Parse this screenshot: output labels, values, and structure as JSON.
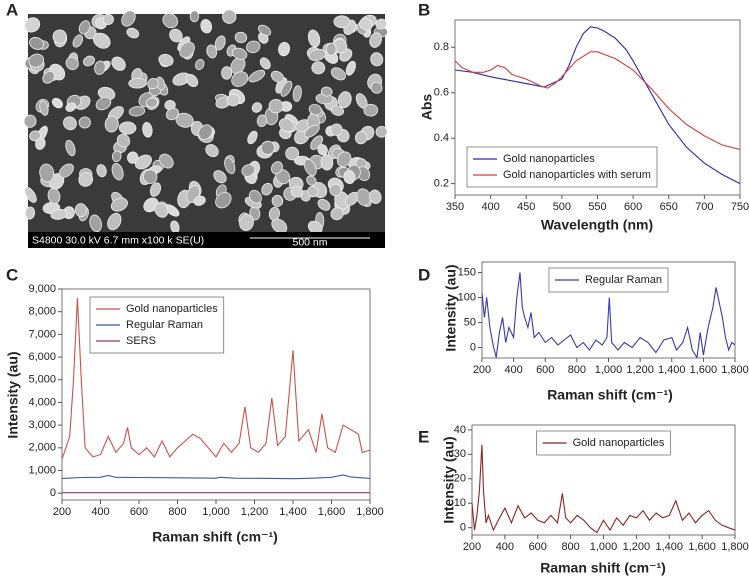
{
  "image_panel": {
    "label": "A",
    "caption": "S4800 30.0 kV 6.7 mm x100 k SE(U)",
    "scale_bar": "500 nm"
  },
  "chart_data": [
    {
      "type": "line",
      "label": "B",
      "x_label": "Wavelength (nm)",
      "y_label": "Abs",
      "xlim": [
        350,
        750
      ],
      "xticks": [
        350,
        400,
        450,
        500,
        550,
        600,
        650,
        700,
        750
      ],
      "ylim": [
        0.15,
        0.92
      ],
      "yticks": [
        0.2,
        0.4,
        0.6,
        0.8
      ],
      "legend": "lower left",
      "series": [
        {
          "name": "Gold nanoparticles",
          "color": "#2b2ba0",
          "x": [
            350,
            375,
            400,
            425,
            450,
            475,
            500,
            510,
            520,
            530,
            540,
            550,
            560,
            575,
            590,
            600,
            625,
            650,
            675,
            700,
            725,
            750
          ],
          "values": [
            0.7,
            0.69,
            0.67,
            0.655,
            0.64,
            0.625,
            0.66,
            0.72,
            0.8,
            0.86,
            0.89,
            0.885,
            0.87,
            0.84,
            0.79,
            0.74,
            0.6,
            0.46,
            0.36,
            0.29,
            0.24,
            0.2
          ]
        },
        {
          "name": "Gold nanoparticles with serum",
          "color": "#d43d3d",
          "x": [
            350,
            360,
            375,
            390,
            400,
            410,
            420,
            430,
            450,
            470,
            480,
            490,
            500,
            520,
            540,
            550,
            575,
            600,
            625,
            650,
            675,
            700,
            725,
            750
          ],
          "values": [
            0.74,
            0.71,
            0.69,
            0.69,
            0.7,
            0.72,
            0.71,
            0.68,
            0.66,
            0.63,
            0.62,
            0.64,
            0.67,
            0.74,
            0.78,
            0.78,
            0.75,
            0.7,
            0.62,
            0.53,
            0.46,
            0.41,
            0.37,
            0.35
          ]
        }
      ]
    },
    {
      "type": "line",
      "label": "C",
      "x_label": "Raman shift (cm⁻¹)",
      "y_label": "Intensity (au)",
      "xlim": [
        200,
        1800
      ],
      "xticks": [
        200,
        400,
        600,
        800,
        {
          "value": 1000,
          "label": "1,000"
        },
        {
          "value": 1200,
          "label": "1,200"
        },
        {
          "value": 1400,
          "label": "1,400"
        },
        {
          "value": 1600,
          "label": "1,600"
        },
        {
          "value": 1800,
          "label": "1,800"
        }
      ],
      "ylim": [
        -300,
        9000
      ],
      "yticks": [
        0,
        {
          "value": 1000,
          "label": "1,000"
        },
        {
          "value": 2000,
          "label": "2,000"
        },
        {
          "value": 3000,
          "label": "3,000"
        },
        {
          "value": 4000,
          "label": "4,000"
        },
        {
          "value": 5000,
          "label": "5,000"
        },
        {
          "value": 6000,
          "label": "6,000"
        },
        {
          "value": 7000,
          "label": "7,000"
        },
        {
          "value": 8000,
          "label": "8,000"
        },
        {
          "value": 9000,
          "label": "9,000"
        }
      ],
      "legend": "upper left",
      "series": [
        {
          "name": "Gold nanoparticles",
          "color": "#c8524f",
          "x": [
            200,
            240,
            260,
            280,
            300,
            320,
            360,
            400,
            440,
            480,
            520,
            540,
            560,
            600,
            640,
            680,
            720,
            760,
            800,
            840,
            880,
            920,
            960,
            1000,
            1040,
            1080,
            1120,
            1150,
            1180,
            1220,
            1260,
            1290,
            1320,
            1360,
            1400,
            1430,
            1480,
            1520,
            1550,
            1580,
            1620,
            1660,
            1700,
            1740,
            1760,
            1800
          ],
          "values": [
            1500,
            2500,
            5000,
            8600,
            5000,
            2000,
            1600,
            1700,
            2500,
            1800,
            2200,
            2900,
            2000,
            1700,
            2000,
            1600,
            2300,
            1600,
            2000,
            2300,
            2600,
            2400,
            2000,
            1600,
            2200,
            1800,
            2200,
            3800,
            2000,
            1800,
            2200,
            4200,
            2100,
            2500,
            6300,
            2300,
            2800,
            1800,
            3500,
            2000,
            1800,
            3000,
            2800,
            2600,
            1800,
            1900
          ]
        },
        {
          "name": "Regular Raman",
          "color": "#3b5ba7",
          "x": [
            200,
            300,
            400,
            440,
            480,
            600,
            800,
            1000,
            1020,
            1100,
            1300,
            1400,
            1500,
            1600,
            1660,
            1700,
            1800
          ],
          "values": [
            650,
            690,
            700,
            780,
            700,
            690,
            680,
            660,
            700,
            660,
            650,
            640,
            660,
            700,
            800,
            720,
            650
          ]
        },
        {
          "name": "SERS",
          "color": "#8b3a62",
          "x": [
            200,
            600,
            1000,
            1400,
            1800
          ],
          "values": [
            20,
            20,
            20,
            20,
            20
          ]
        }
      ]
    },
    {
      "type": "line",
      "label": "D",
      "x_label": "Raman shift (cm⁻¹)",
      "y_label": "Intensity (au)",
      "xlim": [
        200,
        1800
      ],
      "xticks": [
        200,
        400,
        600,
        800,
        {
          "value": 1000,
          "label": "1,000"
        },
        {
          "value": 1200,
          "label": "1,200"
        },
        {
          "value": 1400,
          "label": "1,400"
        },
        {
          "value": 1600,
          "label": "1,600"
        },
        {
          "value": 1800,
          "label": "1,800"
        }
      ],
      "ylim": [
        -21,
        171
      ],
      "yticks": [
        0,
        50,
        100,
        150
      ],
      "legend": "upper center",
      "series": [
        {
          "name": "Regular Raman",
          "color": "#3a3aaa",
          "x": [
            200,
            215,
            230,
            250,
            270,
            290,
            310,
            330,
            350,
            370,
            400,
            420,
            440,
            455,
            470,
            490,
            510,
            530,
            560,
            600,
            640,
            680,
            720,
            760,
            800,
            840,
            880,
            920,
            960,
            990,
            1005,
            1020,
            1060,
            1100,
            1150,
            1200,
            1250,
            1300,
            1350,
            1400,
            1430,
            1470,
            1500,
            1530,
            1560,
            1580,
            1600,
            1630,
            1660,
            1680,
            1700,
            1720,
            1740,
            1760,
            1780,
            1800
          ],
          "values": [
            110,
            60,
            100,
            40,
            5,
            -20,
            30,
            60,
            10,
            40,
            20,
            100,
            150,
            80,
            60,
            40,
            70,
            20,
            30,
            10,
            20,
            5,
            15,
            25,
            0,
            10,
            -5,
            15,
            5,
            20,
            100,
            10,
            -5,
            10,
            0,
            20,
            10,
            -10,
            15,
            20,
            -5,
            10,
            40,
            -5,
            -20,
            30,
            -15,
            40,
            80,
            120,
            90,
            60,
            20,
            -5,
            10,
            5
          ]
        }
      ]
    },
    {
      "type": "line",
      "label": "E",
      "x_label": "Raman shift (cm⁻¹)",
      "y_label": "Intensity (au)",
      "xlim": [
        200,
        1800
      ],
      "xticks": [
        200,
        400,
        600,
        800,
        {
          "value": 1000,
          "label": "1,000"
        },
        {
          "value": 1200,
          "label": "1,200"
        },
        {
          "value": 1400,
          "label": "1,400"
        },
        {
          "value": 1600,
          "label": "1,600"
        },
        {
          "value": 1800,
          "label": "1,800"
        }
      ],
      "ylim": [
        -3,
        42
      ],
      "yticks": [
        0,
        10,
        20,
        30,
        40
      ],
      "legend": "upper center",
      "series": [
        {
          "name": "Gold nanoparticles",
          "color": "#8b2525",
          "x": [
            200,
            215,
            230,
            245,
            260,
            270,
            285,
            300,
            330,
            360,
            400,
            440,
            480,
            520,
            560,
            600,
            640,
            680,
            720,
            750,
            770,
            800,
            840,
            880,
            920,
            960,
            1000,
            1040,
            1080,
            1120,
            1160,
            1200,
            1240,
            1280,
            1320,
            1360,
            1400,
            1440,
            1480,
            1520,
            1560,
            1600,
            1640,
            1680,
            1720,
            1760,
            1800
          ],
          "values": [
            10,
            -1,
            5,
            15,
            34,
            15,
            2,
            5,
            -1,
            3,
            8,
            2,
            9,
            4,
            6,
            3,
            2,
            5,
            2,
            14,
            4,
            2,
            5,
            3,
            0,
            -2,
            3,
            -1,
            4,
            1,
            5,
            4,
            7,
            3,
            6,
            4,
            5,
            11,
            3,
            6,
            2,
            5,
            7,
            3,
            1,
            0,
            -1
          ]
        }
      ]
    }
  ]
}
